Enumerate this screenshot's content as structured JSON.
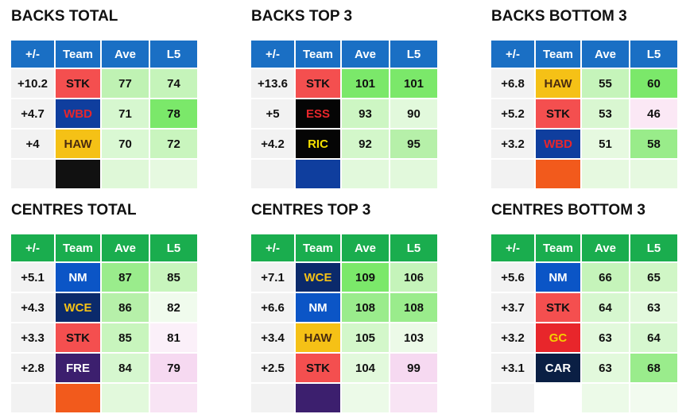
{
  "headers": {
    "diff": "+/-",
    "team": "Team",
    "ave": "Ave",
    "l5": "L5"
  },
  "colors": {
    "backs_header": "#1a6fc4",
    "centres_header": "#1aad4e",
    "diff_cell": "#f2f2f2"
  },
  "panels": [
    {
      "title": "BACKS TOTAL",
      "group": "backs",
      "rows": [
        {
          "diff": "+10.2",
          "team": "STK",
          "team_bg": "#f44f4f",
          "team_fg": "#111111",
          "ave": "77",
          "ave_bg": "#bff2b3",
          "l5": "74",
          "l5_bg": "#c5f4ba"
        },
        {
          "diff": "+4.7",
          "team": "WBD",
          "team_bg": "#0f3e9e",
          "team_fg": "#e8262b",
          "ave": "71",
          "ave_bg": "#d6f7cf",
          "l5": "78",
          "l5_bg": "#7be86a"
        },
        {
          "diff": "+4",
          "team": "HAW",
          "team_bg": "#f5c116",
          "team_fg": "#4a2c10",
          "ave": "70",
          "ave_bg": "#daf8d3",
          "l5": "72",
          "l5_bg": "#c9f5be"
        }
      ],
      "stub": {
        "team_bg": "#111111",
        "ave_bg": "#dff8d8",
        "l5_bg": "#e6f9e0"
      }
    },
    {
      "title": "BACKS TOP 3",
      "group": "backs",
      "rows": [
        {
          "diff": "+13.6",
          "team": "STK",
          "team_bg": "#f44f4f",
          "team_fg": "#111111",
          "ave": "101",
          "ave_bg": "#7be86a",
          "l5": "101",
          "l5_bg": "#7be86a"
        },
        {
          "diff": "+5",
          "team": "ESS",
          "team_bg": "#050505",
          "team_fg": "#e8262b",
          "ave": "93",
          "ave_bg": "#cdf6c3",
          "l5": "90",
          "l5_bg": "#e2f9dc"
        },
        {
          "diff": "+4.2",
          "team": "RIC",
          "team_bg": "#050505",
          "team_fg": "#f5e000",
          "ave": "92",
          "ave_bg": "#d3f7ca",
          "l5": "95",
          "l5_bg": "#b6f0a9"
        }
      ],
      "stub": {
        "team_bg": "#0f3e9e",
        "ave_bg": "#e2f9dc",
        "l5_bg": "#e2f9dc"
      }
    },
    {
      "title": "BACKS BOTTOM 3",
      "group": "backs",
      "rows": [
        {
          "diff": "+6.8",
          "team": "HAW",
          "team_bg": "#f5c116",
          "team_fg": "#4a2c10",
          "ave": "55",
          "ave_bg": "#c5f4ba",
          "l5": "60",
          "l5_bg": "#7be86a"
        },
        {
          "diff": "+5.2",
          "team": "STK",
          "team_bg": "#f44f4f",
          "team_fg": "#111111",
          "ave": "53",
          "ave_bg": "#d9f7d1",
          "l5": "46",
          "l5_bg": "#fbe8f5"
        },
        {
          "diff": "+3.2",
          "team": "WBD",
          "team_bg": "#0f3e9e",
          "team_fg": "#e8262b",
          "ave": "51",
          "ave_bg": "#e6f9e0",
          "l5": "58",
          "l5_bg": "#99ec8a"
        }
      ],
      "stub": {
        "team_bg": "#f25a1c",
        "ave_bg": "#e6f9e0",
        "l5_bg": "#e6f9e0"
      }
    },
    {
      "title": "CENTRES TOTAL",
      "group": "centres",
      "rows": [
        {
          "diff": "+5.1",
          "team": "NM",
          "team_bg": "#0b55c6",
          "team_fg": "#ffffff",
          "ave": "87",
          "ave_bg": "#9aec8c",
          "l5": "85",
          "l5_bg": "#c8f5bd"
        },
        {
          "diff": "+4.3",
          "team": "WCE",
          "team_bg": "#0b2a6b",
          "team_fg": "#f5c116",
          "ave": "86",
          "ave_bg": "#b6f0a9",
          "l5": "82",
          "l5_bg": "#f0fbed"
        },
        {
          "diff": "+3.3",
          "team": "STK",
          "team_bg": "#f44f4f",
          "team_fg": "#111111",
          "ave": "85",
          "ave_bg": "#c8f5bd",
          "l5": "81",
          "l5_bg": "#fbf0f9"
        },
        {
          "diff": "+2.8",
          "team": "FRE",
          "team_bg": "#3c1f6e",
          "team_fg": "#ffffff",
          "ave": "84",
          "ave_bg": "#d6f7cf",
          "l5": "79",
          "l5_bg": "#f6d9f1"
        }
      ],
      "stub": {
        "team_bg": "#f25a1c",
        "ave_bg": "#e2f9dc",
        "l5_bg": "#f8e4f4"
      }
    },
    {
      "title": "CENTRES TOP 3",
      "group": "centres",
      "rows": [
        {
          "diff": "+7.1",
          "team": "WCE",
          "team_bg": "#0b2a6b",
          "team_fg": "#f5c116",
          "ave": "109",
          "ave_bg": "#7be86a",
          "l5": "106",
          "l5_bg": "#c5f4ba"
        },
        {
          "diff": "+6.6",
          "team": "NM",
          "team_bg": "#0b55c6",
          "team_fg": "#ffffff",
          "ave": "108",
          "ave_bg": "#9aec8c",
          "l5": "108",
          "l5_bg": "#9aec8c"
        },
        {
          "diff": "+3.4",
          "team": "HAW",
          "team_bg": "#f5c116",
          "team_fg": "#4a2c10",
          "ave": "105",
          "ave_bg": "#d3f7ca",
          "l5": "103",
          "l5_bg": "#ecfae8"
        },
        {
          "diff": "+2.5",
          "team": "STK",
          "team_bg": "#f44f4f",
          "team_fg": "#111111",
          "ave": "104",
          "ave_bg": "#e2f9dc",
          "l5": "99",
          "l5_bg": "#f6d9f1"
        }
      ],
      "stub": {
        "team_bg": "#3c1f6e",
        "ave_bg": "#ecfae8",
        "l5_bg": "#f8e4f4"
      }
    },
    {
      "title": "CENTRES BOTTOM 3",
      "group": "centres",
      "rows": [
        {
          "diff": "+5.6",
          "team": "NM",
          "team_bg": "#0b55c6",
          "team_fg": "#ffffff",
          "ave": "66",
          "ave_bg": "#c5f4ba",
          "l5": "65",
          "l5_bg": "#d0f6c6"
        },
        {
          "diff": "+3.7",
          "team": "STK",
          "team_bg": "#f44f4f",
          "team_fg": "#111111",
          "ave": "64",
          "ave_bg": "#d6f7cf",
          "l5": "63",
          "l5_bg": "#e2f9dc"
        },
        {
          "diff": "+3.2",
          "team": "GC",
          "team_bg": "#e8262b",
          "team_fg": "#f5d000",
          "ave": "63",
          "ave_bg": "#e2f9dc",
          "l5": "64",
          "l5_bg": "#d6f7cf"
        },
        {
          "diff": "+3.1",
          "team": "CAR",
          "team_bg": "#0a1f44",
          "team_fg": "#ffffff",
          "ave": "63",
          "ave_bg": "#e2f9dc",
          "l5": "68",
          "l5_bg": "#9aec8c"
        }
      ],
      "stub": {
        "team_bg": "#ffffff",
        "ave_bg": "#ecfae8",
        "l5_bg": "#f2fbef"
      }
    }
  ]
}
